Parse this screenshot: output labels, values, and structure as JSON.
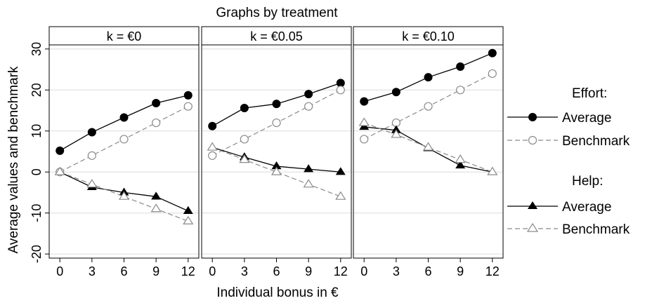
{
  "chart_data": {
    "type": "line",
    "title": "Graphs by treatment",
    "xlabel": "Individual bonus in €",
    "ylabel": "Average values and benchmark",
    "x": [
      0,
      3,
      6,
      9,
      12
    ],
    "xticks": [
      "0",
      "3",
      "6",
      "9",
      "12"
    ],
    "yticks": [
      "-20",
      "-10",
      "0",
      "10",
      "20",
      "30"
    ],
    "ylim": [
      -21,
      31
    ],
    "xlim": [
      -1,
      13
    ],
    "grid": true,
    "legend_position": "right",
    "legend": {
      "group1_title": "Effort:",
      "group1_avg": "Average",
      "group1_bench": "Benchmark",
      "group2_title": "Help:",
      "group2_avg": "Average",
      "group2_bench": "Benchmark"
    },
    "panels": [
      {
        "title": "k = €0",
        "series": [
          {
            "values": [
              5.2,
              9.7,
              13.3,
              16.8,
              18.7
            ]
          },
          {
            "values": [
              0,
              4,
              8,
              12,
              16
            ]
          },
          {
            "values": [
              0,
              -3.7,
              -5,
              -6,
              -9.5
            ]
          },
          {
            "values": [
              0,
              -3,
              -6,
              -9,
              -12
            ]
          }
        ]
      },
      {
        "title": "k = €0.05",
        "series": [
          {
            "values": [
              11.2,
              15.6,
              16.6,
              19,
              21.7
            ]
          },
          {
            "values": [
              4,
              8,
              12,
              16,
              20
            ]
          },
          {
            "values": [
              6,
              3.6,
              1.4,
              0.7,
              0
            ]
          },
          {
            "values": [
              6,
              3,
              0,
              -3,
              -6
            ]
          }
        ]
      },
      {
        "title": "k = €0.10",
        "series": [
          {
            "values": [
              17.2,
              19.5,
              23.1,
              25.7,
              29
            ]
          },
          {
            "values": [
              8,
              12,
              16,
              20,
              24
            ]
          },
          {
            "values": [
              11,
              10.2,
              5.8,
              1.6,
              0
            ]
          },
          {
            "values": [
              12,
              9.1,
              6,
              3,
              0
            ]
          }
        ]
      }
    ],
    "colors": {
      "average": "#000000",
      "benchmark": "#8a8a8a",
      "grid": "#dcdcdc"
    }
  }
}
